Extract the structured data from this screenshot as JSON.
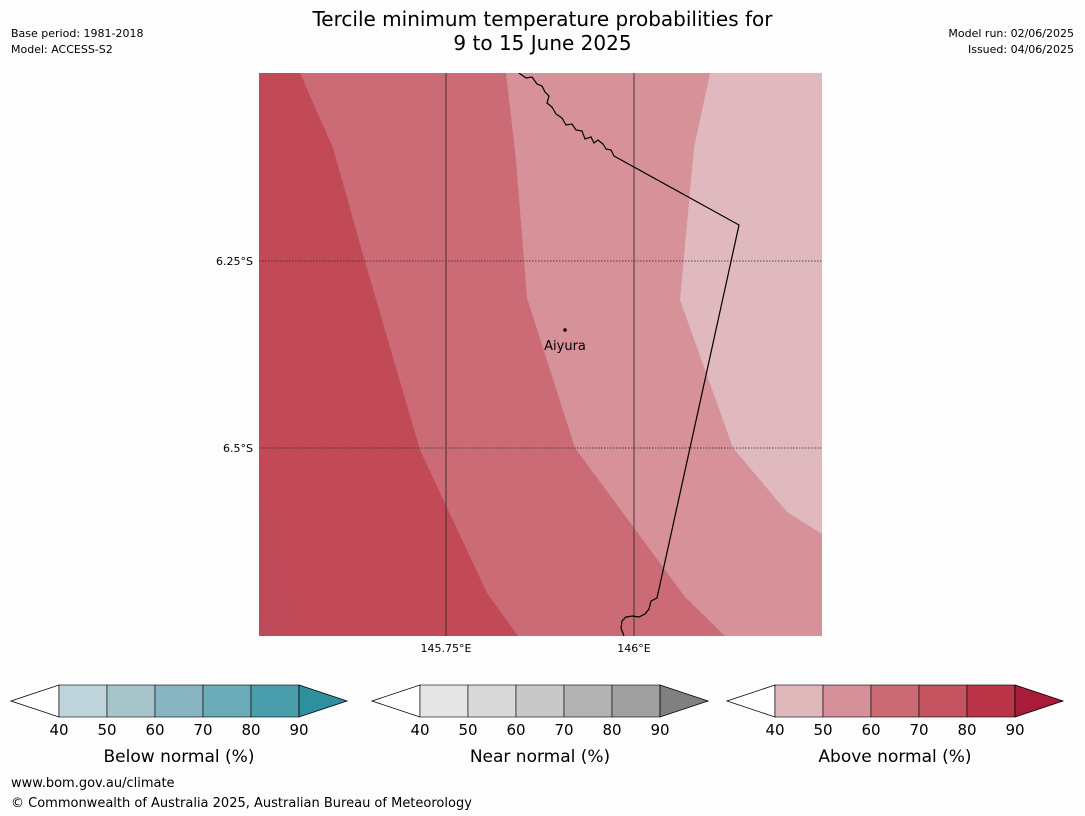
{
  "title_line1": "Tercile minimum temperature probabilities for",
  "title_line2": "9 to 15 June 2025",
  "base_period": "Base period: 1981-2018",
  "model": "Model: ACCESS-S2",
  "model_run": "Model run: 02/06/2025",
  "issued": "Issued: 04/06/2025",
  "map": {
    "lat_labels": [
      "6.25°S",
      "6.5°S"
    ],
    "lon_labels": [
      "145.75°E",
      "146°E"
    ],
    "place_name": "Aiyura"
  },
  "colorbars": [
    {
      "title": "Below normal (%)",
      "ticks": [
        "40",
        "50",
        "60",
        "70",
        "80",
        "90"
      ],
      "colors": [
        "#bfd4da",
        "#a6c5cb",
        "#88b5c1",
        "#6aacb8",
        "#4a9eac"
      ],
      "extend_color": "#2e8f9e"
    },
    {
      "title": "Near normal (%)",
      "ticks": [
        "40",
        "50",
        "60",
        "70",
        "80",
        "90"
      ],
      "colors": [
        "#e5e5e5",
        "#d9d9d9",
        "#c8c8c8",
        "#b3b3b3",
        "#a0a0a0"
      ],
      "extend_color": "#808080"
    },
    {
      "title": "Above normal (%)",
      "ticks": [
        "40",
        "50",
        "60",
        "70",
        "80",
        "90"
      ],
      "colors": [
        "#dfb8bc",
        "#d6909a",
        "#cb6a75",
        "#c35460",
        "#b93447"
      ],
      "extend_color": "#a81c38"
    }
  ],
  "footer_url": "www.bom.gov.au/climate",
  "footer_copyright": "© Commonwealth of Australia 2025, Australian Bureau of Meteorology"
}
